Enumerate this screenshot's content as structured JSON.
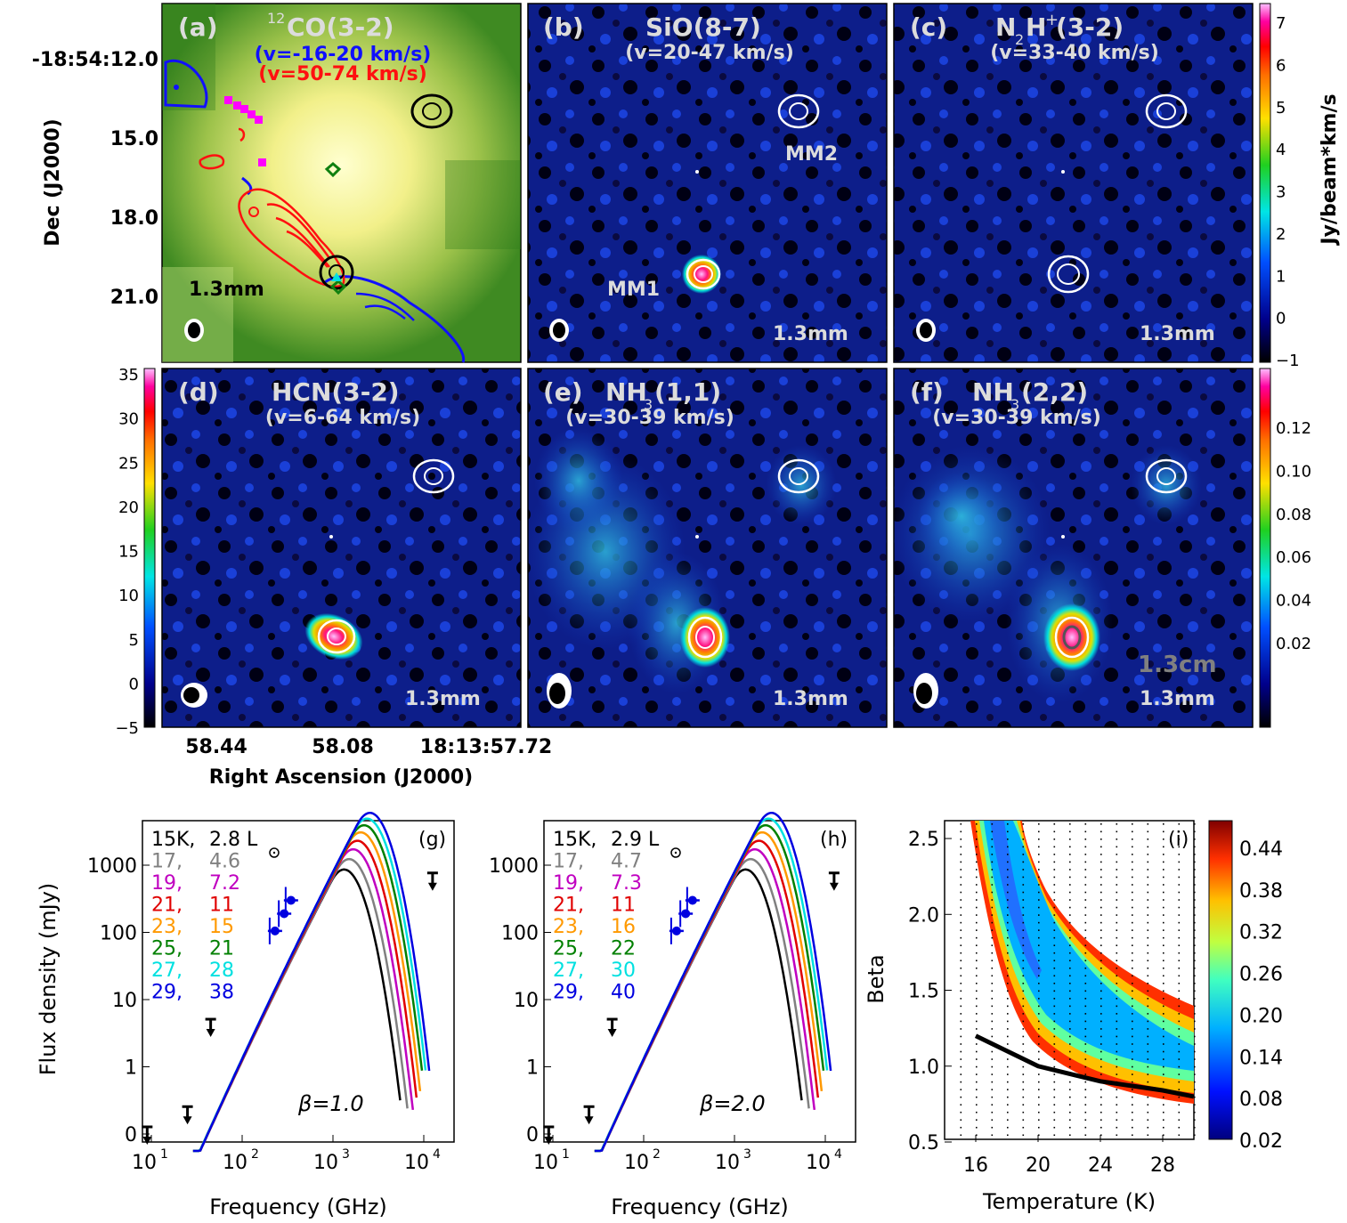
{
  "colors": {
    "mapbg": "#0a1a6e",
    "blue": "#1010ff",
    "red": "#ff1010",
    "magenta": "#ff00ff",
    "panelText": "#dcdcdc",
    "green": "#2a7a10"
  },
  "axes": {
    "ylabel": "Dec (J2000)",
    "xlabel": "Right Ascension (J2000)",
    "dec_ticks": [
      "-18:54:12.0",
      "15.0",
      "18.0",
      "21.0"
    ],
    "ra_ticks": [
      "58.44",
      "58.08",
      "18:13:57.72"
    ]
  },
  "panels": {
    "a": {
      "label": "(a)",
      "title": "CO(3-2)",
      "title_sup": "12",
      "sub1": "(v=-16-20 km/s)",
      "sub2": "(v=50-74 km/s)",
      "band": "1.3mm"
    },
    "b": {
      "label": "(b)",
      "title": "SiO(8-7)",
      "sub": "(v=20-47 km/s)",
      "band": "1.3mm",
      "mm1": "MM1",
      "mm2": "MM2"
    },
    "c": {
      "label": "(c)",
      "title_a": "N",
      "title_sub": "2",
      "title_b": "H",
      "title_sup": "+",
      "title_c": " (3-2)",
      "sub": "(v=33-40 km/s)",
      "band": "1.3mm"
    },
    "d": {
      "label": "(d)",
      "title": "HCN(3-2)",
      "sub": "(v=6-64 km/s)",
      "band": "1.3mm"
    },
    "e": {
      "label": "(e)",
      "title_a": "NH",
      "title_sub": "3",
      "title_b": "(1,1)",
      "sub": "(v=30-39 km/s)",
      "band": "1.3mm"
    },
    "f": {
      "label": "(f)",
      "title_a": "NH",
      "title_sub": "3",
      "title_b": "(2,2)",
      "sub": "(v=30-39 km/s)",
      "band": "1.3mm",
      "band2": "1.3cm"
    }
  },
  "colorbars": {
    "top": {
      "label": "Jy/beam*km/s",
      "ticks": [
        "7",
        "6",
        "5",
        "4",
        "3",
        "2",
        "1",
        "0",
        "−1"
      ]
    },
    "left": {
      "ticks": [
        "35",
        "30",
        "25",
        "20",
        "15",
        "10",
        "5",
        "0",
        "−5"
      ]
    },
    "right": {
      "ticks": [
        "0.12",
        "0.10",
        "0.08",
        "0.06",
        "0.04",
        "0.02"
      ]
    },
    "i": {
      "ticks": [
        "0.44",
        "0.38",
        "0.32",
        "0.26",
        "0.20",
        "0.14",
        "0.08",
        "0.02"
      ]
    }
  },
  "chart_data": [
    {
      "type": "line",
      "panel": "(g)",
      "xlabel": "Frequency (GHz)",
      "ylabel": "Flux density (mJy)",
      "xscale": "log",
      "yscale": "log",
      "xticks": [
        "10",
        "10",
        "10",
        "10"
      ],
      "xtick_sups": [
        "1",
        "2",
        "3",
        "4"
      ],
      "yticks": [
        "1000",
        "100",
        "10",
        "1",
        "0"
      ],
      "beta_label": "β=1.0",
      "legend": [
        {
          "t": "15K,",
          "l": "2.8 L",
          "color": "#000000"
        },
        {
          "t": "17,",
          "l": "4.6",
          "color": "#808080"
        },
        {
          "t": "19,",
          "l": "7.2",
          "color": "#c000c0"
        },
        {
          "t": "21,",
          "l": "11",
          "color": "#e00000"
        },
        {
          "t": "23,",
          "l": "15",
          "color": "#ff9900"
        },
        {
          "t": "25,",
          "l": "21",
          "color": "#008000"
        },
        {
          "t": "27,",
          "l": "28",
          "color": "#00e0e0"
        },
        {
          "t": "29,",
          "l": "38",
          "color": "#0000e0"
        }
      ],
      "series": [
        {
          "T": 15,
          "peak_GHz": 950,
          "peak_mJy": 560
        },
        {
          "T": 17,
          "peak_GHz": 1080,
          "peak_mJy": 800
        },
        {
          "T": 19,
          "peak_GHz": 1200,
          "peak_mJy": 1120
        },
        {
          "T": 21,
          "peak_GHz": 1330,
          "peak_mJy": 1500
        },
        {
          "T": 23,
          "peak_GHz": 1450,
          "peak_mJy": 2000
        },
        {
          "T": 25,
          "peak_GHz": 1580,
          "peak_mJy": 2550
        },
        {
          "T": 27,
          "peak_GHz": 1700,
          "peak_mJy": 3200
        },
        {
          "T": 29,
          "peak_GHz": 1830,
          "peak_mJy": 3900
        }
      ],
      "points": [
        {
          "x": 230,
          "y": 105
        },
        {
          "x": 290,
          "y": 190
        },
        {
          "x": 345,
          "y": 300
        }
      ],
      "upper_limits": [
        {
          "x": 9,
          "y": 0.1
        },
        {
          "x": 25,
          "y": 0.2
        },
        {
          "x": 45,
          "y": 4
        },
        {
          "x": 12500,
          "y": 600
        }
      ]
    },
    {
      "type": "line",
      "panel": "(h)",
      "xlabel": "Frequency (GHz)",
      "xscale": "log",
      "yscale": "log",
      "xticks": [
        "10",
        "10",
        "10",
        "10"
      ],
      "xtick_sups": [
        "1",
        "2",
        "3",
        "4"
      ],
      "yticks": [
        "1000",
        "100",
        "10",
        "1",
        "0"
      ],
      "beta_label": "β=2.0",
      "legend": [
        {
          "t": "15K,",
          "l": "2.9 L",
          "color": "#000000"
        },
        {
          "t": "17,",
          "l": "4.7",
          "color": "#808080"
        },
        {
          "t": "19,",
          "l": "7.3",
          "color": "#c000c0"
        },
        {
          "t": "21,",
          "l": "11",
          "color": "#e00000"
        },
        {
          "t": "23,",
          "l": "16",
          "color": "#ff9900"
        },
        {
          "t": "25,",
          "l": "22",
          "color": "#008000"
        },
        {
          "t": "27,",
          "l": "30",
          "color": "#00e0e0"
        },
        {
          "t": "29,",
          "l": "40",
          "color": "#0000e0"
        }
      ],
      "points": [
        {
          "x": 230,
          "y": 105
        },
        {
          "x": 290,
          "y": 190
        },
        {
          "x": 345,
          "y": 300
        }
      ],
      "upper_limits": [
        {
          "x": 9,
          "y": 0.1
        },
        {
          "x": 25,
          "y": 0.2
        },
        {
          "x": 45,
          "y": 4
        },
        {
          "x": 12500,
          "y": 600
        }
      ]
    },
    {
      "type": "heatmap",
      "panel": "(i)",
      "xlabel": "Temperature (K)",
      "ylabel": "Beta",
      "xlim": [
        14,
        30
      ],
      "ylim": [
        0.5,
        2.6
      ],
      "xticks": [
        "16",
        "20",
        "24",
        "28"
      ],
      "yticks": [
        "2.5",
        "2.0",
        "1.5",
        "1.0",
        "0.5"
      ],
      "best_fit_line": [
        {
          "T": 16,
          "beta": 1.2
        },
        {
          "T": 18,
          "beta": 1.1
        },
        {
          "T": 20,
          "beta": 1.0
        },
        {
          "T": 22,
          "beta": 0.95
        },
        {
          "T": 24,
          "beta": 0.9
        },
        {
          "T": 26,
          "beta": 0.87
        },
        {
          "T": 28,
          "beta": 0.84
        },
        {
          "T": 30,
          "beta": 0.8
        }
      ]
    }
  ]
}
